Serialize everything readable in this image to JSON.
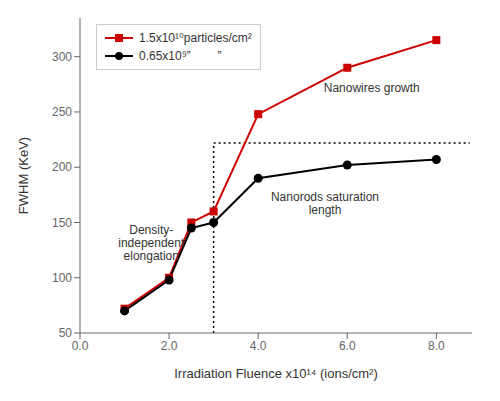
{
  "chart_data": {
    "type": "line",
    "xlabel": "Irradiation Fluence x10¹⁴ (ions/cm²)",
    "ylabel": "FWHM (KeV)",
    "x": [
      1.0,
      2.0,
      2.5,
      3.0,
      4.0,
      6.0,
      8.0
    ],
    "series": [
      {
        "name": "1.5x10¹⁰particles/cm²",
        "color": "#cc0000",
        "marker": "square",
        "values": [
          72,
          100,
          150,
          160,
          248,
          290,
          315
        ]
      },
      {
        "name": "0.65x10⁹”        ”",
        "color": "#000000",
        "marker": "circle",
        "values": [
          70,
          98,
          145,
          150,
          190,
          202,
          207
        ]
      }
    ],
    "xlim": [
      0.0,
      8.8
    ],
    "ylim": [
      50,
      335
    ],
    "xticks": [
      {
        "value": 0.0,
        "label": "0.0"
      },
      {
        "value": 2.0,
        "label": "2.0"
      },
      {
        "value": 4.0,
        "label": "4.0"
      },
      {
        "value": 6.0,
        "label": "6.0"
      },
      {
        "value": 8.0,
        "label": "8.0"
      }
    ],
    "yticks": [
      50,
      100,
      150,
      200,
      250,
      300
    ],
    "legend": "upper left",
    "annotations": [
      {
        "text": "Density-\nindependent\nelongation",
        "x": 1.6,
        "y": 148
      },
      {
        "text": "Nanowires growth",
        "x": 6.55,
        "y": 272
      },
      {
        "text": "Nanorods saturation\nlength",
        "x": 5.5,
        "y": 167
      }
    ],
    "reference_lines": [
      {
        "x": [
          3.0,
          3.0
        ],
        "y": [
          50,
          222
        ],
        "color": "#000000",
        "line_style": "dotted"
      },
      {
        "x": [
          3.0,
          8.75
        ],
        "y": [
          222,
          222
        ],
        "color": "#000000",
        "line_style": "dotted"
      }
    ]
  }
}
